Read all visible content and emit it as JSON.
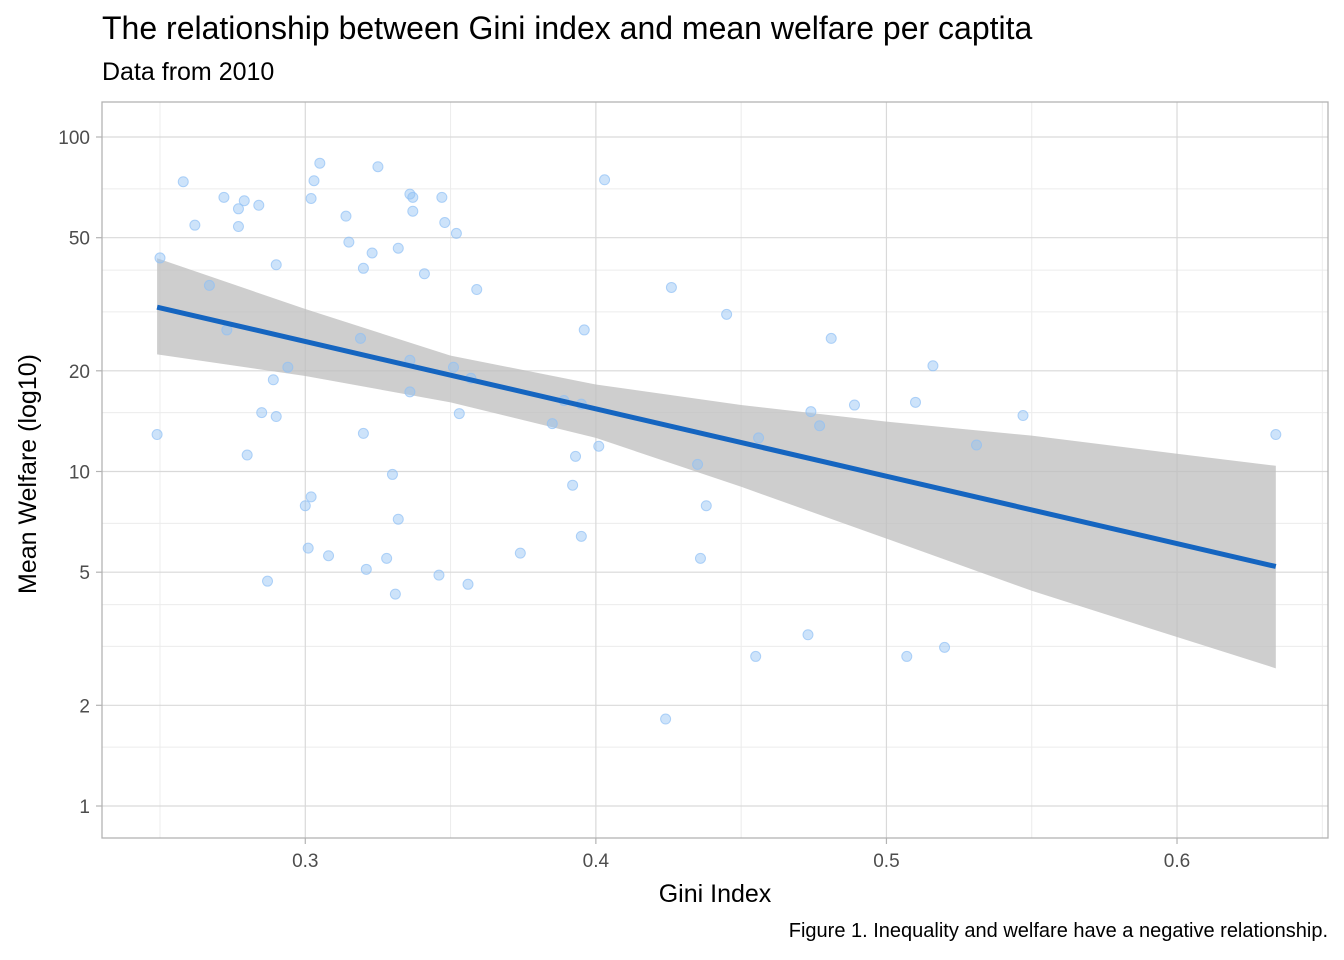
{
  "chart_data": {
    "type": "scatter",
    "title": "The relationship between Gini index and mean welfare per captita",
    "subtitle": "Data from 2010",
    "caption": "Figure 1. Inequality and welfare have a negative relationship.",
    "xlabel": "Gini Index",
    "ylabel": "Mean Welfare (log10)",
    "xlim": [
      0.23,
      0.65
    ],
    "ylim": [
      0.82,
      125
    ],
    "y_scale": "log10",
    "grid": true,
    "legend": "none",
    "x_ticks": [
      {
        "value": 0.3,
        "label": "0.3"
      },
      {
        "value": 0.4,
        "label": "0.4"
      },
      {
        "value": 0.5,
        "label": "0.5"
      },
      {
        "value": 0.6,
        "label": "0.6"
      }
    ],
    "y_ticks": [
      {
        "value": 1,
        "label": "1"
      },
      {
        "value": 2,
        "label": "2"
      },
      {
        "value": 5,
        "label": "5"
      },
      {
        "value": 10,
        "label": "10"
      },
      {
        "value": 20,
        "label": "20"
      },
      {
        "value": 50,
        "label": "50"
      },
      {
        "value": 100,
        "label": "100"
      }
    ],
    "colors": {
      "points": "#90c0f5",
      "line": "#1565c0",
      "band": "#bebebe",
      "grid_major": "#d9d9d9",
      "grid_minor": "#ececec",
      "panel_border": "#b3b3b3"
    },
    "points": [
      {
        "x": 0.249,
        "y": 12.9
      },
      {
        "x": 0.25,
        "y": 43.5
      },
      {
        "x": 0.258,
        "y": 73.5
      },
      {
        "x": 0.262,
        "y": 54.5
      },
      {
        "x": 0.267,
        "y": 36.0
      },
      {
        "x": 0.272,
        "y": 66.0
      },
      {
        "x": 0.273,
        "y": 26.5
      },
      {
        "x": 0.277,
        "y": 61.0
      },
      {
        "x": 0.277,
        "y": 54.0
      },
      {
        "x": 0.279,
        "y": 64.5
      },
      {
        "x": 0.28,
        "y": 11.2
      },
      {
        "x": 0.284,
        "y": 62.5
      },
      {
        "x": 0.285,
        "y": 15.0
      },
      {
        "x": 0.287,
        "y": 4.7
      },
      {
        "x": 0.289,
        "y": 18.8
      },
      {
        "x": 0.29,
        "y": 41.5
      },
      {
        "x": 0.29,
        "y": 14.6
      },
      {
        "x": 0.294,
        "y": 20.5
      },
      {
        "x": 0.3,
        "y": 7.9
      },
      {
        "x": 0.301,
        "y": 5.9
      },
      {
        "x": 0.302,
        "y": 8.4
      },
      {
        "x": 0.302,
        "y": 65.5
      },
      {
        "x": 0.303,
        "y": 74.0
      },
      {
        "x": 0.305,
        "y": 83.5
      },
      {
        "x": 0.308,
        "y": 5.6
      },
      {
        "x": 0.314,
        "y": 58.0
      },
      {
        "x": 0.315,
        "y": 48.5
      },
      {
        "x": 0.319,
        "y": 25.0
      },
      {
        "x": 0.32,
        "y": 40.5
      },
      {
        "x": 0.32,
        "y": 13.0
      },
      {
        "x": 0.321,
        "y": 5.1
      },
      {
        "x": 0.323,
        "y": 45.0
      },
      {
        "x": 0.325,
        "y": 81.5
      },
      {
        "x": 0.328,
        "y": 5.5
      },
      {
        "x": 0.33,
        "y": 9.8
      },
      {
        "x": 0.331,
        "y": 4.3
      },
      {
        "x": 0.332,
        "y": 46.5
      },
      {
        "x": 0.332,
        "y": 7.2
      },
      {
        "x": 0.336,
        "y": 67.5
      },
      {
        "x": 0.336,
        "y": 21.5
      },
      {
        "x": 0.336,
        "y": 17.3
      },
      {
        "x": 0.337,
        "y": 66.0
      },
      {
        "x": 0.337,
        "y": 60.0
      },
      {
        "x": 0.341,
        "y": 39.0
      },
      {
        "x": 0.346,
        "y": 4.9
      },
      {
        "x": 0.347,
        "y": 66.0
      },
      {
        "x": 0.348,
        "y": 55.5
      },
      {
        "x": 0.351,
        "y": 20.5
      },
      {
        "x": 0.352,
        "y": 51.5
      },
      {
        "x": 0.353,
        "y": 14.9
      },
      {
        "x": 0.356,
        "y": 4.6
      },
      {
        "x": 0.357,
        "y": 19.0
      },
      {
        "x": 0.359,
        "y": 35.0
      },
      {
        "x": 0.374,
        "y": 5.7
      },
      {
        "x": 0.385,
        "y": 13.9
      },
      {
        "x": 0.389,
        "y": 16.3
      },
      {
        "x": 0.392,
        "y": 9.1
      },
      {
        "x": 0.393,
        "y": 11.1
      },
      {
        "x": 0.395,
        "y": 15.9
      },
      {
        "x": 0.395,
        "y": 6.4
      },
      {
        "x": 0.396,
        "y": 26.5
      },
      {
        "x": 0.401,
        "y": 11.9
      },
      {
        "x": 0.403,
        "y": 74.5
      },
      {
        "x": 0.424,
        "y": 1.82
      },
      {
        "x": 0.426,
        "y": 35.5
      },
      {
        "x": 0.435,
        "y": 10.5
      },
      {
        "x": 0.436,
        "y": 5.5
      },
      {
        "x": 0.438,
        "y": 7.9
      },
      {
        "x": 0.445,
        "y": 29.5
      },
      {
        "x": 0.455,
        "y": 2.8
      },
      {
        "x": 0.456,
        "y": 12.6
      },
      {
        "x": 0.473,
        "y": 3.25
      },
      {
        "x": 0.474,
        "y": 15.1
      },
      {
        "x": 0.477,
        "y": 13.7
      },
      {
        "x": 0.481,
        "y": 25.0
      },
      {
        "x": 0.489,
        "y": 15.8
      },
      {
        "x": 0.507,
        "y": 2.8
      },
      {
        "x": 0.51,
        "y": 16.1
      },
      {
        "x": 0.516,
        "y": 20.7
      },
      {
        "x": 0.52,
        "y": 2.98
      },
      {
        "x": 0.531,
        "y": 12.0
      },
      {
        "x": 0.547,
        "y": 14.7
      },
      {
        "x": 0.634,
        "y": 12.9
      }
    ],
    "trend_line": [
      {
        "x": 0.249,
        "y": 31.0
      },
      {
        "x": 0.634,
        "y": 5.2
      }
    ],
    "confidence_band": [
      {
        "x": 0.249,
        "lower": 22.4,
        "upper": 43.4
      },
      {
        "x": 0.3,
        "lower": 19.3,
        "upper": 30.6
      },
      {
        "x": 0.35,
        "lower": 16.1,
        "upper": 22.2
      },
      {
        "x": 0.4,
        "lower": 12.6,
        "upper": 18.2
      },
      {
        "x": 0.45,
        "lower": 9.0,
        "upper": 15.8
      },
      {
        "x": 0.5,
        "lower": 6.3,
        "upper": 14.1
      },
      {
        "x": 0.55,
        "lower": 4.4,
        "upper": 12.8
      },
      {
        "x": 0.6,
        "lower": 3.2,
        "upper": 11.3
      },
      {
        "x": 0.634,
        "lower": 2.58,
        "upper": 10.4
      }
    ]
  }
}
